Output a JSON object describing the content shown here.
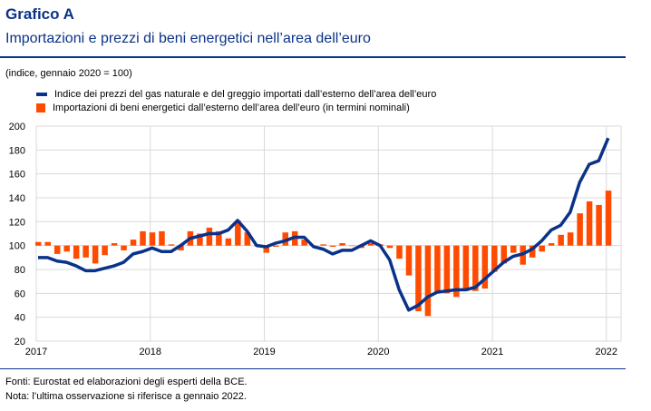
{
  "title": "Grafico A",
  "subtitle": "Importazioni e prezzi di beni energetici nell’area dell’euro",
  "unit_note": "(indice, gennaio 2020 = 100)",
  "footnotes": [
    "Fonti: Eurostat ed elaborazioni degli esperti della BCE.",
    "Nota: l’ultima osservazione si riferisce a gennaio 2022."
  ],
  "colors": {
    "line": "#0a3289",
    "bar": "#ff4b00",
    "title": "#0a3289"
  },
  "chart_data": {
    "type": "bar+line",
    "x_start": "2017-01",
    "x_end": "2022-01",
    "frequency": "monthly",
    "x_ticks": [
      "2017",
      "2018",
      "2019",
      "2020",
      "2021",
      "2022"
    ],
    "ylim": [
      20,
      200
    ],
    "y_ticks": [
      20,
      40,
      60,
      80,
      100,
      120,
      140,
      160,
      180,
      200
    ],
    "baseline": 100,
    "grid": true,
    "legend_position": "top-left",
    "series": [
      {
        "name": "Indice dei prezzi del gas naturale e del greggio importati dall’esterno dell’area dell’euro",
        "type": "line",
        "values": [
          90,
          90,
          87,
          86,
          83,
          79,
          79,
          81,
          83,
          86,
          93,
          95,
          98,
          95,
          95,
          100,
          106,
          108,
          110,
          110,
          113,
          121,
          112,
          100,
          99,
          102,
          104,
          107,
          107,
          99,
          97,
          93,
          96,
          96,
          100,
          104,
          100,
          88,
          63,
          46,
          50,
          57,
          61,
          62,
          63,
          63,
          65,
          72,
          79,
          86,
          91,
          93,
          97,
          104,
          113,
          117,
          128,
          153,
          168,
          171,
          190
        ]
      },
      {
        "name": "Importazioni di beni energetici dall’esterno dell’area dell’euro (in termini nominali)",
        "type": "bar",
        "values": [
          103,
          103,
          93,
          95,
          89,
          90,
          85,
          92,
          102,
          96,
          105,
          112,
          111,
          112,
          101,
          96,
          112,
          110,
          115,
          112,
          106,
          121,
          111,
          100,
          94,
          99,
          111,
          112,
          105,
          100,
          101,
          99,
          102,
          100,
          98,
          102,
          101,
          98,
          89,
          75,
          45,
          41,
          60,
          60,
          57,
          62,
          62,
          64,
          78,
          85,
          94,
          84,
          90,
          95,
          102,
          109,
          111,
          127,
          137,
          134,
          146
        ]
      }
    ]
  }
}
